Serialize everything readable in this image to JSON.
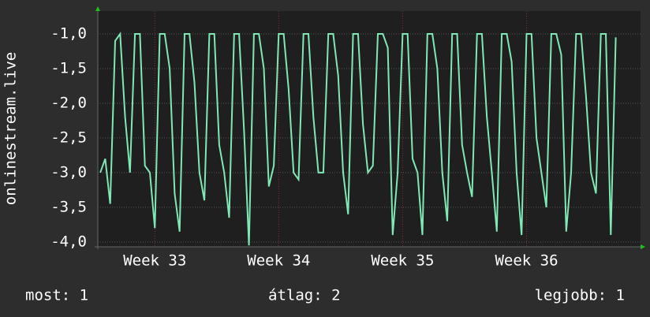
{
  "chart_data": {
    "type": "line",
    "y_label": "onlinestream.live",
    "xlim": [
      32.54,
      36.92
    ],
    "xticks": [
      {
        "value": 33,
        "label": "Week 33"
      },
      {
        "value": 34,
        "label": "Week 34"
      },
      {
        "value": 35,
        "label": "Week 35"
      },
      {
        "value": 36,
        "label": "Week 36"
      }
    ],
    "ylim": [
      -4.07,
      -0.67
    ],
    "yticks": [
      {
        "value": -1,
        "label": "-1,0"
      },
      {
        "value": -1.5,
        "label": "-1,5"
      },
      {
        "value": -2,
        "label": "-2,0"
      },
      {
        "value": -2.5,
        "label": "-2,5"
      },
      {
        "value": -3,
        "label": "-3,0"
      },
      {
        "value": -3.5,
        "label": "-3,5"
      },
      {
        "value": -4,
        "label": "-4,0"
      }
    ],
    "grid": true,
    "x": [
      32.56,
      32.6,
      32.64,
      32.68,
      32.72,
      32.76,
      32.8,
      32.84,
      32.88,
      32.92,
      32.96,
      33,
      33.04,
      33.08,
      33.12,
      33.16,
      33.2,
      33.24,
      33.28,
      33.32,
      33.36,
      33.4,
      33.44,
      33.48,
      33.52,
      33.56,
      33.6,
      33.64,
      33.68,
      33.72,
      33.76,
      33.8,
      33.84,
      33.88,
      33.92,
      33.96,
      34,
      34.04,
      34.08,
      34.12,
      34.16,
      34.2,
      34.24,
      34.28,
      34.32,
      34.36,
      34.4,
      34.44,
      34.48,
      34.52,
      34.56,
      34.6,
      34.64,
      34.68,
      34.72,
      34.76,
      34.8,
      34.84,
      34.88,
      34.92,
      34.96,
      35,
      35.04,
      35.08,
      35.12,
      35.16,
      35.2,
      35.24,
      35.28,
      35.32,
      35.36,
      35.4,
      35.44,
      35.48,
      35.52,
      35.56,
      35.6,
      35.64,
      35.68,
      35.72,
      35.76,
      35.8,
      35.84,
      35.88,
      35.92,
      35.96,
      36,
      36.04,
      36.08,
      36.12,
      36.16,
      36.2,
      36.24,
      36.28,
      36.32,
      36.36,
      36.4,
      36.44,
      36.48,
      36.52,
      36.56,
      36.6,
      36.64,
      36.68,
      36.72
    ],
    "series": [
      {
        "name": "onlinestream.live",
        "color": "#80e8b4",
        "values": [
          -3,
          -2.8,
          -3.45,
          -1.1,
          -1,
          -2.2,
          -3,
          -1,
          -1,
          -2.9,
          -3,
          -3.8,
          -1,
          -1,
          -1.5,
          -3.3,
          -3.85,
          -1,
          -1,
          -1.7,
          -3,
          -3.4,
          -1,
          -1,
          -2.6,
          -3,
          -3.65,
          -1,
          -1,
          -2.4,
          -4.05,
          -1,
          -1,
          -1.5,
          -3.2,
          -2.9,
          -1,
          -1,
          -1.8,
          -3,
          -3.1,
          -1,
          -1,
          -2.2,
          -3,
          -3,
          -1,
          -1,
          -1.6,
          -3,
          -3.6,
          -1,
          -1,
          -2.3,
          -3,
          -2.9,
          -1,
          -1,
          -1.2,
          -3.9,
          -3,
          -1,
          -1,
          -2.8,
          -3,
          -3.9,
          -1,
          -1,
          -1.5,
          -3,
          -3.7,
          -1,
          -1,
          -2.6,
          -3,
          -3.35,
          -1,
          -1,
          -2.2,
          -3,
          -3.85,
          -1,
          -1,
          -1.4,
          -3,
          -3.9,
          -1,
          -1,
          -2.5,
          -3,
          -3.5,
          -1,
          -1,
          -1.3,
          -3.85,
          -3,
          -1,
          -1,
          -1.9,
          -3,
          -3.3,
          -1,
          -1,
          -3.9,
          -1.05
        ]
      }
    ]
  },
  "footer": {
    "current": "most: 1",
    "average": "átlag: 2",
    "best": "legjobb: 1"
  }
}
